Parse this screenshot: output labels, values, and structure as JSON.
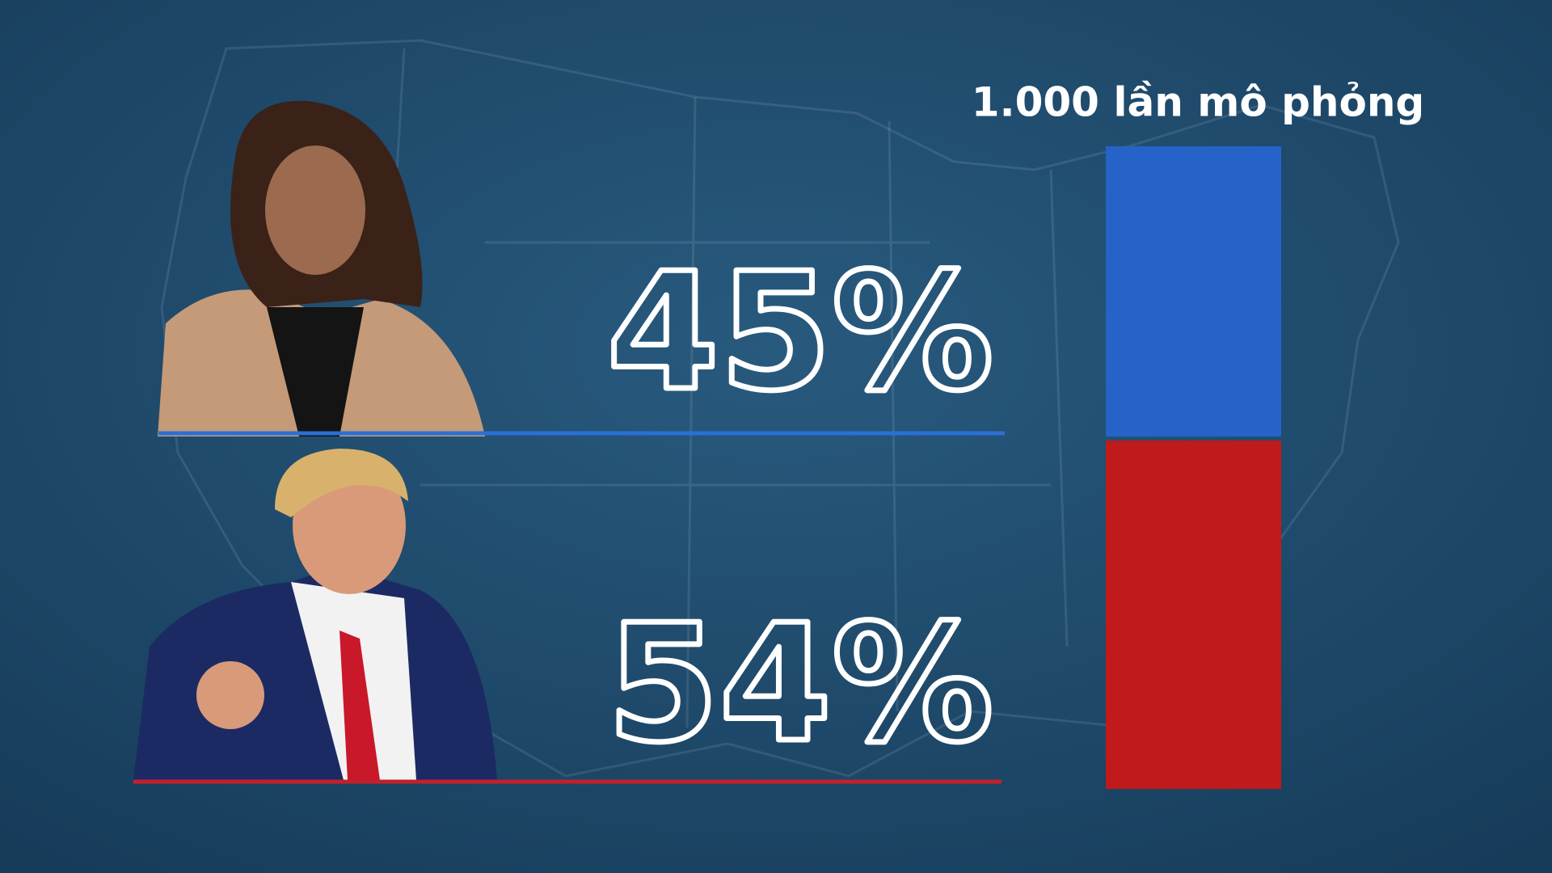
{
  "chart_data": {
    "type": "bar",
    "stacked": true,
    "title": "1.000 lần mô phỏng",
    "series": [
      {
        "color": "#2563c9",
        "values": [
          45
        ],
        "value_labels": [
          "45%"
        ]
      },
      {
        "color": "#c01a1a",
        "values": [
          54
        ],
        "value_labels": [
          "54%"
        ]
      }
    ]
  }
}
